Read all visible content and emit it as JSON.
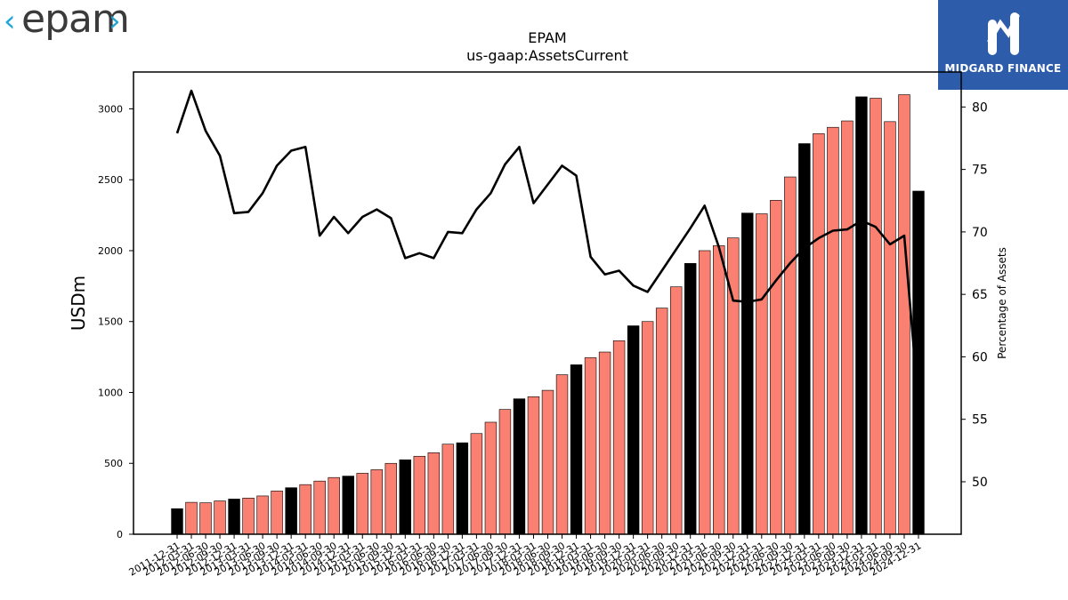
{
  "branding": {
    "company_logo_text": "epam",
    "partner_logo_text": "MIDGARD FINANCE"
  },
  "colors": {
    "bar_default": "#fa8072",
    "bar_highlight": "#000000",
    "line": "#000000",
    "epam_logo_text": "#3b3b3b",
    "epam_logo_chevron": "#1fa7d8",
    "midgard_bg": "#2d5cab"
  },
  "chart_data": {
    "type": "bar",
    "title": "EPAM",
    "subtitle": "us-gaap:AssetsCurrent",
    "ylabel": "USDm",
    "y2label": "Percentage of Assets",
    "ylim": [
      0,
      3260
    ],
    "y2lim": [
      45.8,
      82.8
    ],
    "yticks": [
      0,
      500,
      1000,
      1500,
      2000,
      2500,
      3000
    ],
    "y2ticks": [
      50,
      55,
      60,
      65,
      70,
      75,
      80
    ],
    "categories": [
      "2011-12-31",
      "2012-03-31",
      "2012-06-30",
      "2012-09-30",
      "2012-12-31",
      "2013-03-31",
      "2013-06-30",
      "2013-09-30",
      "2013-12-31",
      "2014-03-31",
      "2014-06-30",
      "2014-09-30",
      "2014-12-31",
      "2015-03-31",
      "2015-06-30",
      "2015-09-30",
      "2015-12-31",
      "2016-03-31",
      "2016-06-30",
      "2016-09-30",
      "2016-12-31",
      "2017-03-31",
      "2017-06-30",
      "2017-09-30",
      "2017-12-31",
      "2018-03-31",
      "2018-06-30",
      "2018-09-30",
      "2018-12-31",
      "2019-03-31",
      "2019-06-30",
      "2019-09-30",
      "2019-12-31",
      "2020-03-31",
      "2020-06-30",
      "2020-09-30",
      "2020-12-31",
      "2021-03-31",
      "2021-06-30",
      "2021-09-30",
      "2021-12-31",
      "2022-03-31",
      "2022-06-30",
      "2022-09-30",
      "2022-12-31",
      "2023-03-31",
      "2023-06-30",
      "2023-09-30",
      "2023-12-31",
      "2024-03-31",
      "2024-06-30",
      "2024-09-30",
      "2024-12-31"
    ],
    "series": [
      {
        "name": "AssetsCurrent (USDm)",
        "kind": "bar",
        "axis": "left",
        "values": [
          180,
          225,
          222,
          235,
          248,
          255,
          270,
          305,
          328,
          350,
          375,
          400,
          410,
          430,
          455,
          500,
          525,
          550,
          575,
          635,
          645,
          710,
          790,
          880,
          955,
          970,
          1015,
          1125,
          1195,
          1245,
          1285,
          1365,
          1470,
          1500,
          1595,
          1745,
          1910,
          2000,
          2035,
          2090,
          2265,
          2260,
          2355,
          2520,
          2755,
          2825,
          2870,
          2915,
          3085,
          3075,
          2910,
          3100,
          2420
        ]
      },
      {
        "name": "Percentage of Assets",
        "kind": "line",
        "axis": "right",
        "values": [
          77.9,
          81.3,
          78.1,
          76.1,
          71.5,
          71.6,
          73.1,
          75.3,
          76.5,
          76.8,
          69.7,
          71.2,
          69.9,
          71.2,
          71.8,
          71.1,
          67.9,
          68.3,
          67.9,
          70.0,
          69.9,
          71.8,
          73.1,
          75.4,
          76.8,
          72.3,
          73.8,
          75.3,
          74.5,
          68.0,
          66.6,
          66.9,
          65.7,
          65.2,
          66.9,
          68.6,
          70.3,
          72.1,
          68.8,
          64.5,
          64.4,
          64.6,
          66.1,
          67.5,
          68.7,
          69.5,
          70.1,
          70.2,
          70.9,
          70.4,
          69.0,
          69.7,
          56.2
        ]
      }
    ],
    "highlight_categories": [
      "2011-12-31",
      "2012-12-31",
      "2013-12-31",
      "2014-12-31",
      "2015-12-31",
      "2016-12-31",
      "2017-12-31",
      "2018-12-31",
      "2019-12-31",
      "2020-12-31",
      "2021-12-31",
      "2022-12-31",
      "2023-12-31",
      "2024-12-31"
    ],
    "grid": false,
    "legend": "none"
  }
}
